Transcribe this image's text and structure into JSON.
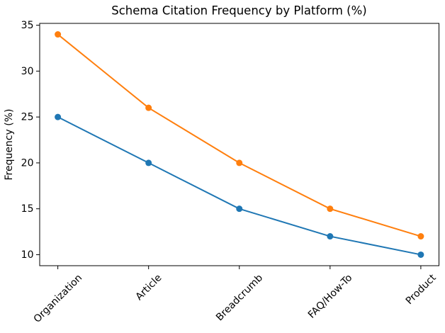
{
  "chart_data": {
    "type": "line",
    "title": "Schema Citation Frequency by Platform (%)",
    "xlabel": "",
    "ylabel": "Frequency (%)",
    "categories": [
      "Organization",
      "Article",
      "Breadcrumb",
      "FAQ/How-To",
      "Product"
    ],
    "series": [
      {
        "name": "blue-series",
        "color": "#1f77b4",
        "values": [
          25,
          20,
          15,
          12,
          10
        ]
      },
      {
        "name": "orange-series",
        "color": "#ff7f0e",
        "values": [
          34,
          26,
          20,
          15,
          12
        ]
      }
    ],
    "yticks": [
      10,
      15,
      20,
      25,
      30,
      35
    ],
    "ylim": [
      8.8,
      35.2
    ],
    "xtick_rotation": 45,
    "grid": false,
    "legend": "none",
    "marker": "circle",
    "background_color": "#ffffff",
    "spine_color": "#000000"
  }
}
